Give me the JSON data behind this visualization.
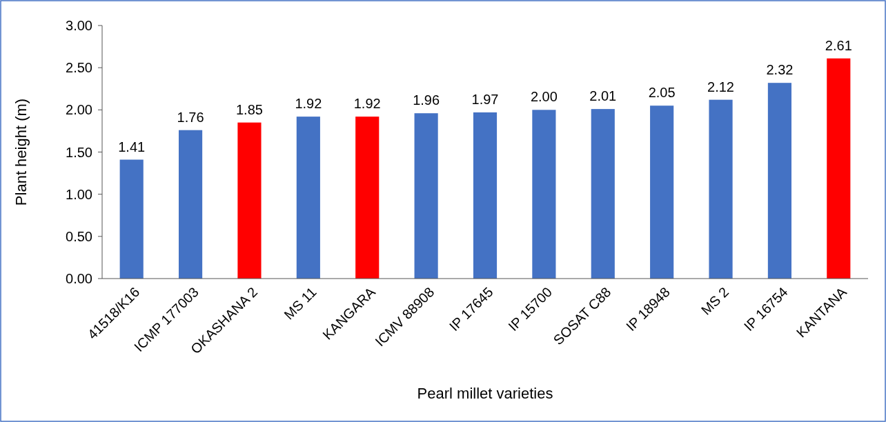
{
  "chart_data": {
    "type": "bar",
    "xlabel": "Pearl millet varieties",
    "ylabel": "Plant height (m)",
    "categories": [
      "41518/K16",
      "ICMP 177003",
      "OKASHANA 2",
      "MS 11",
      "KANGARA",
      "ICMV 88908",
      "IP 17645",
      "IP 15700",
      "SOSAT C88",
      "IP 18948",
      "MS 2",
      "IP 16754",
      "KANTANA"
    ],
    "values": [
      1.41,
      1.76,
      1.85,
      1.92,
      1.92,
      1.96,
      1.97,
      2.0,
      2.01,
      2.05,
      2.12,
      2.32,
      2.61
    ],
    "colors": [
      "#4472c4",
      "#4472c4",
      "#ff0000",
      "#4472c4",
      "#ff0000",
      "#4472c4",
      "#4472c4",
      "#4472c4",
      "#4472c4",
      "#4472c4",
      "#4472c4",
      "#4472c4",
      "#ff0000"
    ],
    "value_labels": [
      "1.41",
      "1.76",
      "1.85",
      "1.92",
      "1.92",
      "1.96",
      "1.97",
      "2.00",
      "2.01",
      "2.05",
      "2.12",
      "2.32",
      "2.61"
    ],
    "ylim": [
      0,
      3
    ],
    "yticks": [
      {
        "value": 0,
        "label": "0.00"
      },
      {
        "value": 0.5,
        "label": "0.50"
      },
      {
        "value": 1,
        "label": "1.00"
      },
      {
        "value": 1.5,
        "label": "1.50"
      },
      {
        "value": 2,
        "label": "2.00"
      },
      {
        "value": 2.5,
        "label": "2.50"
      },
      {
        "value": 3,
        "label": "3.00"
      }
    ],
    "grid": false
  }
}
